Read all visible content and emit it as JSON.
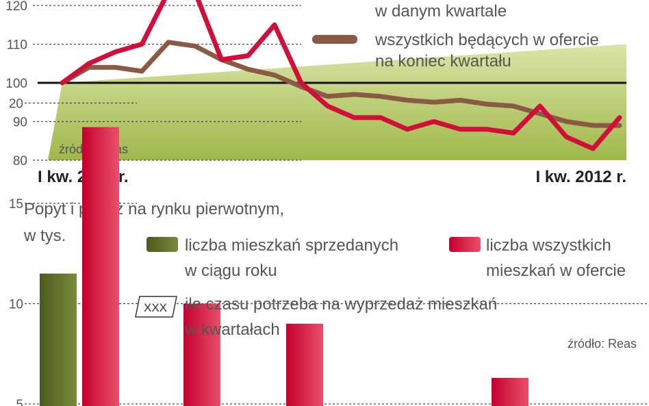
{
  "chart_data": [
    {
      "type": "line",
      "ylim": [
        80,
        122
      ],
      "yticks": [
        80,
        90,
        100,
        110,
        120
      ],
      "reference_line": 100,
      "x_start_label": "I kw. 2007 r.",
      "x_end_label": "I kw. 2012 r.",
      "source": "źródło: Reas",
      "series": [
        {
          "legend_lines": [
            "w danym kwartale"
          ],
          "color": "#d0103a",
          "values": [
            100,
            105,
            108,
            110,
            125,
            125,
            106,
            107,
            115,
            100,
            94,
            91,
            91,
            88,
            90,
            88,
            88,
            87,
            94,
            86,
            83,
            91
          ]
        },
        {
          "legend_lines": [
            "wszystkich będących w ofercie",
            "na koniec kwartału"
          ],
          "color": "#8a5a45",
          "values": [
            100,
            104,
            104,
            103,
            110.5,
            109.5,
            106,
            103.5,
            102,
            99,
            96.5,
            97,
            96.5,
            95.5,
            95,
            95.5,
            94.5,
            94,
            92,
            90,
            89,
            89
          ]
        }
      ],
      "colors": {
        "area_top": "#dbe4a8",
        "area_bottom": "#9fb84a",
        "grid": "#444444"
      }
    },
    {
      "type": "bar",
      "title_lines": [
        "Popyt i podaż na rynku pierwotnym,",
        "w tys."
      ],
      "ylim": [
        5,
        20
      ],
      "yticks": [
        5,
        10,
        15,
        20
      ],
      "source": "źródło: Reas",
      "badge_text": "XXX",
      "badge_legend_lines": [
        "ile czasu potrzeba na wyprzedaż mieszkań",
        "w kwartałach"
      ],
      "series": [
        {
          "legend_lines": [
            "liczba mieszkań sprzedanych",
            "w ciągu roku"
          ],
          "color": "#5e6b2a",
          "values": [
            11.5,
            null,
            null,
            null,
            null
          ]
        },
        {
          "legend_lines": [
            "liczba wszystkich",
            "mieszkań w ofercie"
          ],
          "color": "#d0103a",
          "values": [
            18.8,
            10,
            9,
            null,
            6.3
          ]
        }
      ]
    }
  ]
}
